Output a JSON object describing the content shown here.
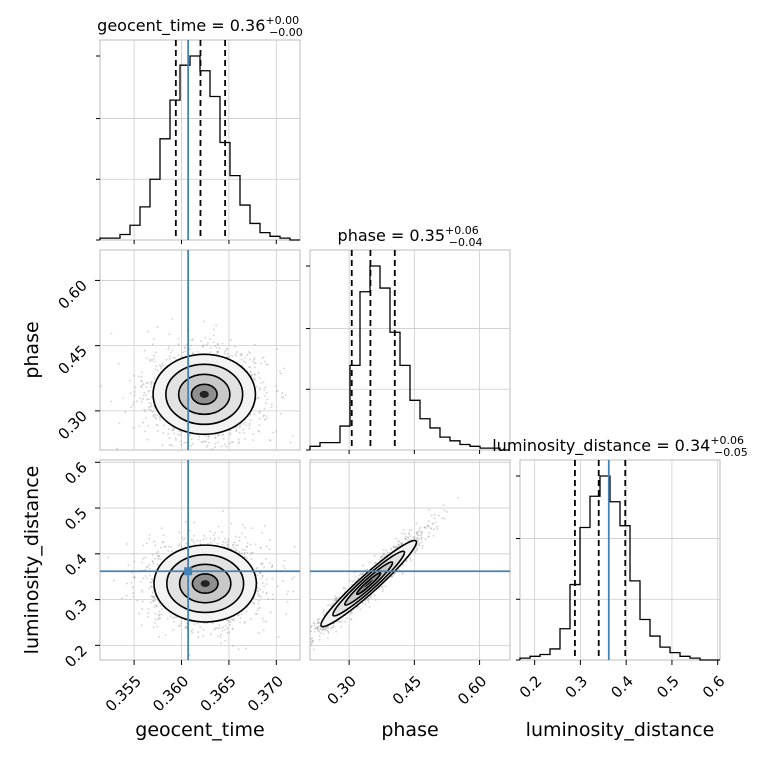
{
  "chart_data": {
    "type": "corner",
    "parameters": [
      "geocent_time",
      "phase",
      "luminosity_distance"
    ],
    "truth_line_color": "#4682b4",
    "diagonal": [
      {
        "parameter": "geocent_time",
        "title": {
          "text": "geocent_time = 0.36",
          "plus": "+0.00",
          "minus": "−0.00"
        },
        "range": [
          0.3514,
          0.3725
        ],
        "quantiles": [
          0.3594,
          0.362,
          0.3646
        ],
        "truth": 0.3607,
        "hist": [
          0.01,
          0.01,
          0.03,
          0.08,
          0.18,
          0.33,
          0.55,
          0.76,
          0.95,
          1.0,
          0.92,
          0.78,
          0.53,
          0.35,
          0.19,
          0.09,
          0.04,
          0.02,
          0.01,
          0.0
        ]
      },
      {
        "parameter": "phase",
        "title": {
          "text": "phase = 0.35",
          "plus": "+0.06",
          "minus": "−0.04"
        },
        "range": [
          0.21,
          0.67
        ],
        "quantiles": [
          0.306,
          0.349,
          0.405
        ],
        "hist": [
          0.02,
          0.04,
          0.04,
          0.13,
          0.46,
          0.86,
          1.0,
          0.88,
          0.64,
          0.46,
          0.27,
          0.17,
          0.12,
          0.07,
          0.05,
          0.03,
          0.02,
          0.01,
          0.01,
          0.0
        ]
      },
      {
        "parameter": "luminosity_distance",
        "title": {
          "text": "luminosity_distance = 0.34",
          "plus": "+0.06",
          "minus": "−0.05"
        },
        "range": [
          0.168,
          0.605
        ],
        "quantiles": [
          0.288,
          0.34,
          0.398
        ],
        "truth": 0.362,
        "hist": [
          0.01,
          0.02,
          0.03,
          0.06,
          0.17,
          0.41,
          0.72,
          0.89,
          1.0,
          0.86,
          0.73,
          0.43,
          0.22,
          0.13,
          0.07,
          0.04,
          0.02,
          0.01,
          0.0,
          0.0
        ]
      }
    ],
    "pairs": [
      {
        "x": "geocent_time",
        "y": "phase",
        "center": [
          0.3624,
          0.338
        ],
        "sd": [
          0.0027,
          0.046
        ]
      },
      {
        "x": "geocent_time",
        "y": "luminosity_distance",
        "center": [
          0.3625,
          0.335
        ],
        "sd": [
          0.0027,
          0.042
        ]
      },
      {
        "x": "phase",
        "y": "luminosity_distance",
        "center": [
          0.345,
          0.335
        ],
        "sd": [
          0.054,
          0.048
        ],
        "corr": 0.96
      }
    ],
    "axes": {
      "geocent_time": {
        "ticks": [
          0.355,
          0.36,
          0.365,
          0.37
        ],
        "tick_labels": [
          "0.355",
          "0.360",
          "0.365",
          "0.370"
        ],
        "label": "geocent_time"
      },
      "phase": {
        "ticks": [
          0.3,
          0.45,
          0.6
        ],
        "tick_labels": [
          "0.30",
          "0.45",
          "0.60"
        ],
        "label": "phase"
      },
      "luminosity_distance": {
        "ticks": [
          0.2,
          0.3,
          0.4,
          0.5,
          0.6
        ],
        "tick_labels": [
          "0.2",
          "0.3",
          "0.4",
          "0.5",
          "0.6"
        ],
        "label": "luminosity_distance"
      }
    },
    "grid": true
  }
}
